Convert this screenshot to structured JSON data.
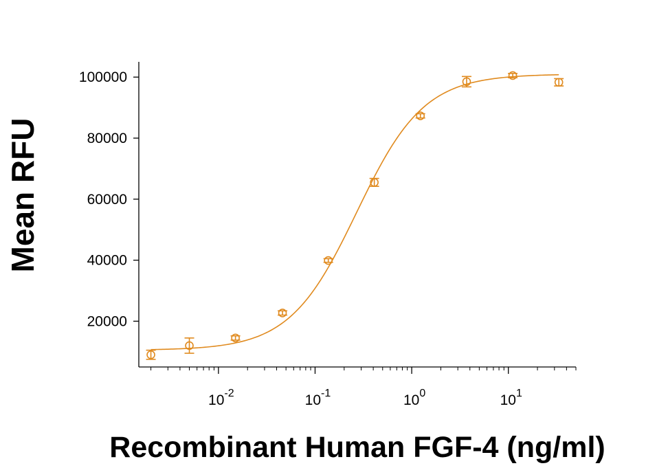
{
  "chart_data": {
    "type": "scatter",
    "title": "",
    "xlabel": "Recombinant Human FGF-4 (ng/ml)",
    "ylabel": "Mean RFU",
    "x_scale": "log10",
    "xlim": [
      0.0015,
      50
    ],
    "ylim": [
      5000,
      105000
    ],
    "x_ticks": [
      {
        "value": 0.01,
        "base": "10",
        "exp": "-2"
      },
      {
        "value": 0.1,
        "base": "10",
        "exp": "-1"
      },
      {
        "value": 1,
        "base": "10",
        "exp": "0"
      },
      {
        "value": 10,
        "base": "10",
        "exp": "1"
      }
    ],
    "y_ticks": [
      {
        "value": 20000,
        "label": "20000"
      },
      {
        "value": 40000,
        "label": "40000"
      },
      {
        "value": 60000,
        "label": "60000"
      },
      {
        "value": 80000,
        "label": "80000"
      },
      {
        "value": 100000,
        "label": "100000"
      }
    ],
    "color": "#E08A1E",
    "grid": false,
    "series": [
      {
        "points": [
          {
            "x": 0.002,
            "y": 9000,
            "err": 1500
          },
          {
            "x": 0.005,
            "y": 12000,
            "err": 2500
          },
          {
            "x": 0.015,
            "y": 14500,
            "err": 700
          },
          {
            "x": 0.046,
            "y": 22700,
            "err": 700
          },
          {
            "x": 0.137,
            "y": 39900,
            "err": 600
          },
          {
            "x": 0.41,
            "y": 65500,
            "err": 1300
          },
          {
            "x": 1.23,
            "y": 87300,
            "err": 700
          },
          {
            "x": 3.7,
            "y": 98500,
            "err": 1700
          },
          {
            "x": 11.1,
            "y": 100500,
            "err": 700
          },
          {
            "x": 33.3,
            "y": 98300,
            "err": 1200
          }
        ],
        "fit": {
          "model": "4PL",
          "bottom": 10500,
          "top": 101000,
          "ec50": 0.27,
          "hill": 1.25
        }
      }
    ]
  }
}
